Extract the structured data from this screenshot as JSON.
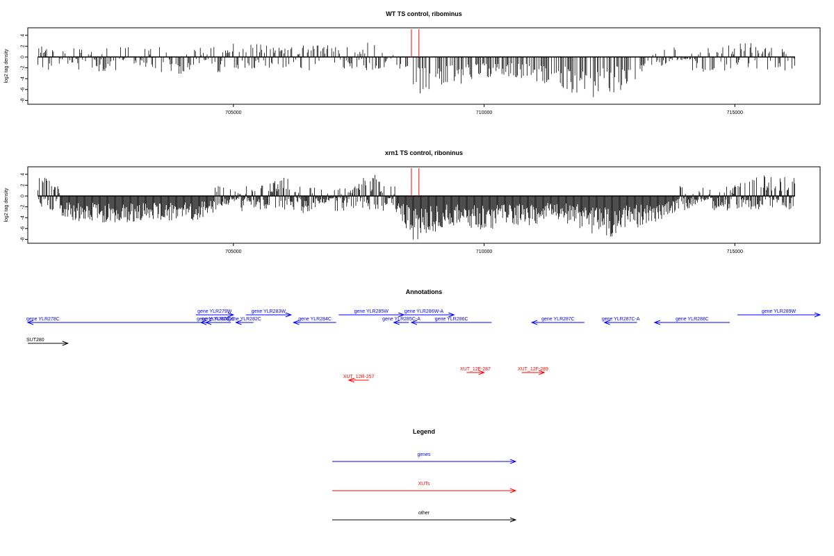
{
  "chart_data": [
    {
      "type": "bar",
      "title": "WT TS control, ribominus",
      "ylabel": "log2 tag density",
      "xlabel": "",
      "xlim": [
        700900,
        716700
      ],
      "ylim": [
        -8,
        4
      ],
      "x_ticks": [
        705000,
        710000,
        715000
      ],
      "y_ticks": [
        4,
        2,
        0,
        -2,
        -4,
        -6,
        -8
      ],
      "marker_lines_x": [
        708550,
        708700
      ],
      "marker_color": "#ff0000",
      "bar_color": "#000000",
      "series": [
        {
          "values": [
            {
              "x": 701200,
              "y": 2.0
            },
            {
              "x": 701800,
              "y": -1.5
            },
            {
              "x": 702000,
              "y": 2.0
            },
            {
              "x": 703900,
              "y": -3.5
            },
            {
              "x": 705000,
              "y": 2.8
            },
            {
              "x": 706000,
              "y": 2.0
            },
            {
              "x": 707500,
              "y": 2.5
            },
            {
              "x": 707900,
              "y": 4.0
            },
            {
              "x": 708200,
              "y": -2.0
            },
            {
              "x": 708600,
              "y": -7.0
            },
            {
              "x": 709300,
              "y": -5.5
            },
            {
              "x": 710200,
              "y": -3.5
            },
            {
              "x": 712400,
              "y": -8.0
            },
            {
              "x": 713500,
              "y": -1.5
            },
            {
              "x": 715200,
              "y": 3.0
            },
            {
              "x": 716000,
              "y": 1.5
            }
          ]
        }
      ]
    },
    {
      "type": "bar",
      "title": "xrn1 TS control, riboninus",
      "ylabel": "log2 tag density",
      "xlabel": "",
      "xlim": [
        700900,
        716700
      ],
      "ylim": [
        -8,
        4
      ],
      "x_ticks": [
        705000,
        710000,
        715000
      ],
      "y_ticks": [
        4,
        2,
        0,
        -2,
        -4,
        -6,
        -8
      ],
      "marker_lines_x": [
        708550,
        708700
      ],
      "marker_color": "#ff0000",
      "bar_color": "#000000",
      "series": [
        {
          "values": [
            {
              "x": 701300,
              "y": 4.0
            },
            {
              "x": 701600,
              "y": -4.5
            },
            {
              "x": 702200,
              "y": -5.0
            },
            {
              "x": 704300,
              "y": -4.5
            },
            {
              "x": 705800,
              "y": 3.5
            },
            {
              "x": 706000,
              "y": 5.0
            },
            {
              "x": 706400,
              "y": -3.5
            },
            {
              "x": 707800,
              "y": 4.5
            },
            {
              "x": 708600,
              "y": -8.5
            },
            {
              "x": 709300,
              "y": -6.0
            },
            {
              "x": 710200,
              "y": -6.5
            },
            {
              "x": 711500,
              "y": -4.5
            },
            {
              "x": 712400,
              "y": -8.0
            },
            {
              "x": 713500,
              "y": -4.5
            },
            {
              "x": 715600,
              "y": 4.5
            },
            {
              "x": 716200,
              "y": 3.5
            }
          ]
        }
      ]
    }
  ],
  "annotations": {
    "title": "Annotations",
    "items": [
      {
        "label": "gene YLR278C",
        "color": "#0000ff",
        "dir": "left",
        "start": 700900,
        "end": 704400,
        "row": 1
      },
      {
        "label": "gene YLR279W",
        "color": "#0000ff",
        "dir": "right",
        "start": 704250,
        "end": 705000,
        "row": 0
      },
      {
        "label": "gene YLR280C",
        "color": "#0000ff",
        "dir": "left",
        "start": 704350,
        "end": 704850,
        "row": 1
      },
      {
        "label": "gene YLR281C",
        "color": "#0000ff",
        "dir": "left",
        "start": 704450,
        "end": 704950,
        "row": 1
      },
      {
        "label": "gene YLR282C",
        "color": "#0000ff",
        "dir": "left",
        "start": 705050,
        "end": 705400,
        "row": 1
      },
      {
        "label": "gene YLR283W",
        "color": "#0000ff",
        "dir": "right",
        "start": 705250,
        "end": 706150,
        "row": 0
      },
      {
        "label": "gene YLR284C",
        "color": "#0000ff",
        "dir": "left",
        "start": 706200,
        "end": 707050,
        "row": 1
      },
      {
        "label": "gene YLR285W",
        "color": "#0000ff",
        "dir": "right",
        "start": 707100,
        "end": 708400,
        "row": 0
      },
      {
        "label": "gene YLR285C-A",
        "color": "#0000ff",
        "dir": "left",
        "start": 708200,
        "end": 708500,
        "row": 1
      },
      {
        "label": "gene YLR286W-A",
        "color": "#0000ff",
        "dir": "right",
        "start": 708200,
        "end": 709400,
        "row": 0
      },
      {
        "label": "gene YLR286C",
        "color": "#0000ff",
        "dir": "left",
        "start": 708550,
        "end": 710150,
        "row": 1
      },
      {
        "label": "gene YLR287C",
        "color": "#0000ff",
        "dir": "left",
        "start": 710950,
        "end": 712000,
        "row": 1
      },
      {
        "label": "gene YLR287C-A",
        "color": "#0000ff",
        "dir": "left",
        "start": 712400,
        "end": 713050,
        "row": 1
      },
      {
        "label": "gene YLR288C",
        "color": "#0000ff",
        "dir": "left",
        "start": 713400,
        "end": 714900,
        "row": 1
      },
      {
        "label": "gene YLR289W",
        "color": "#0000ff",
        "dir": "right",
        "start": 715050,
        "end": 716700,
        "row": 0
      },
      {
        "label": "SUT280",
        "color": "#000000",
        "dir": "right",
        "start": 700900,
        "end": 701700,
        "row": 2
      },
      {
        "label": "XUT_12R-257",
        "color": "#ff0000",
        "dir": "left",
        "start": 707300,
        "end": 707700,
        "row": 4
      },
      {
        "label": "XUT_12F-287",
        "color": "#ff0000",
        "dir": "right",
        "start": 709650,
        "end": 710000,
        "row": 3
      },
      {
        "label": "XUT_12F-289",
        "color": "#ff0000",
        "dir": "right",
        "start": 710750,
        "end": 711200,
        "row": 3
      }
    ]
  },
  "legend": {
    "title": "Legend",
    "entries": [
      {
        "label": "genes",
        "color": "#0000ff"
      },
      {
        "label": "XUTs",
        "color": "#ff0000"
      },
      {
        "label": "other",
        "color": "#000000"
      }
    ]
  }
}
